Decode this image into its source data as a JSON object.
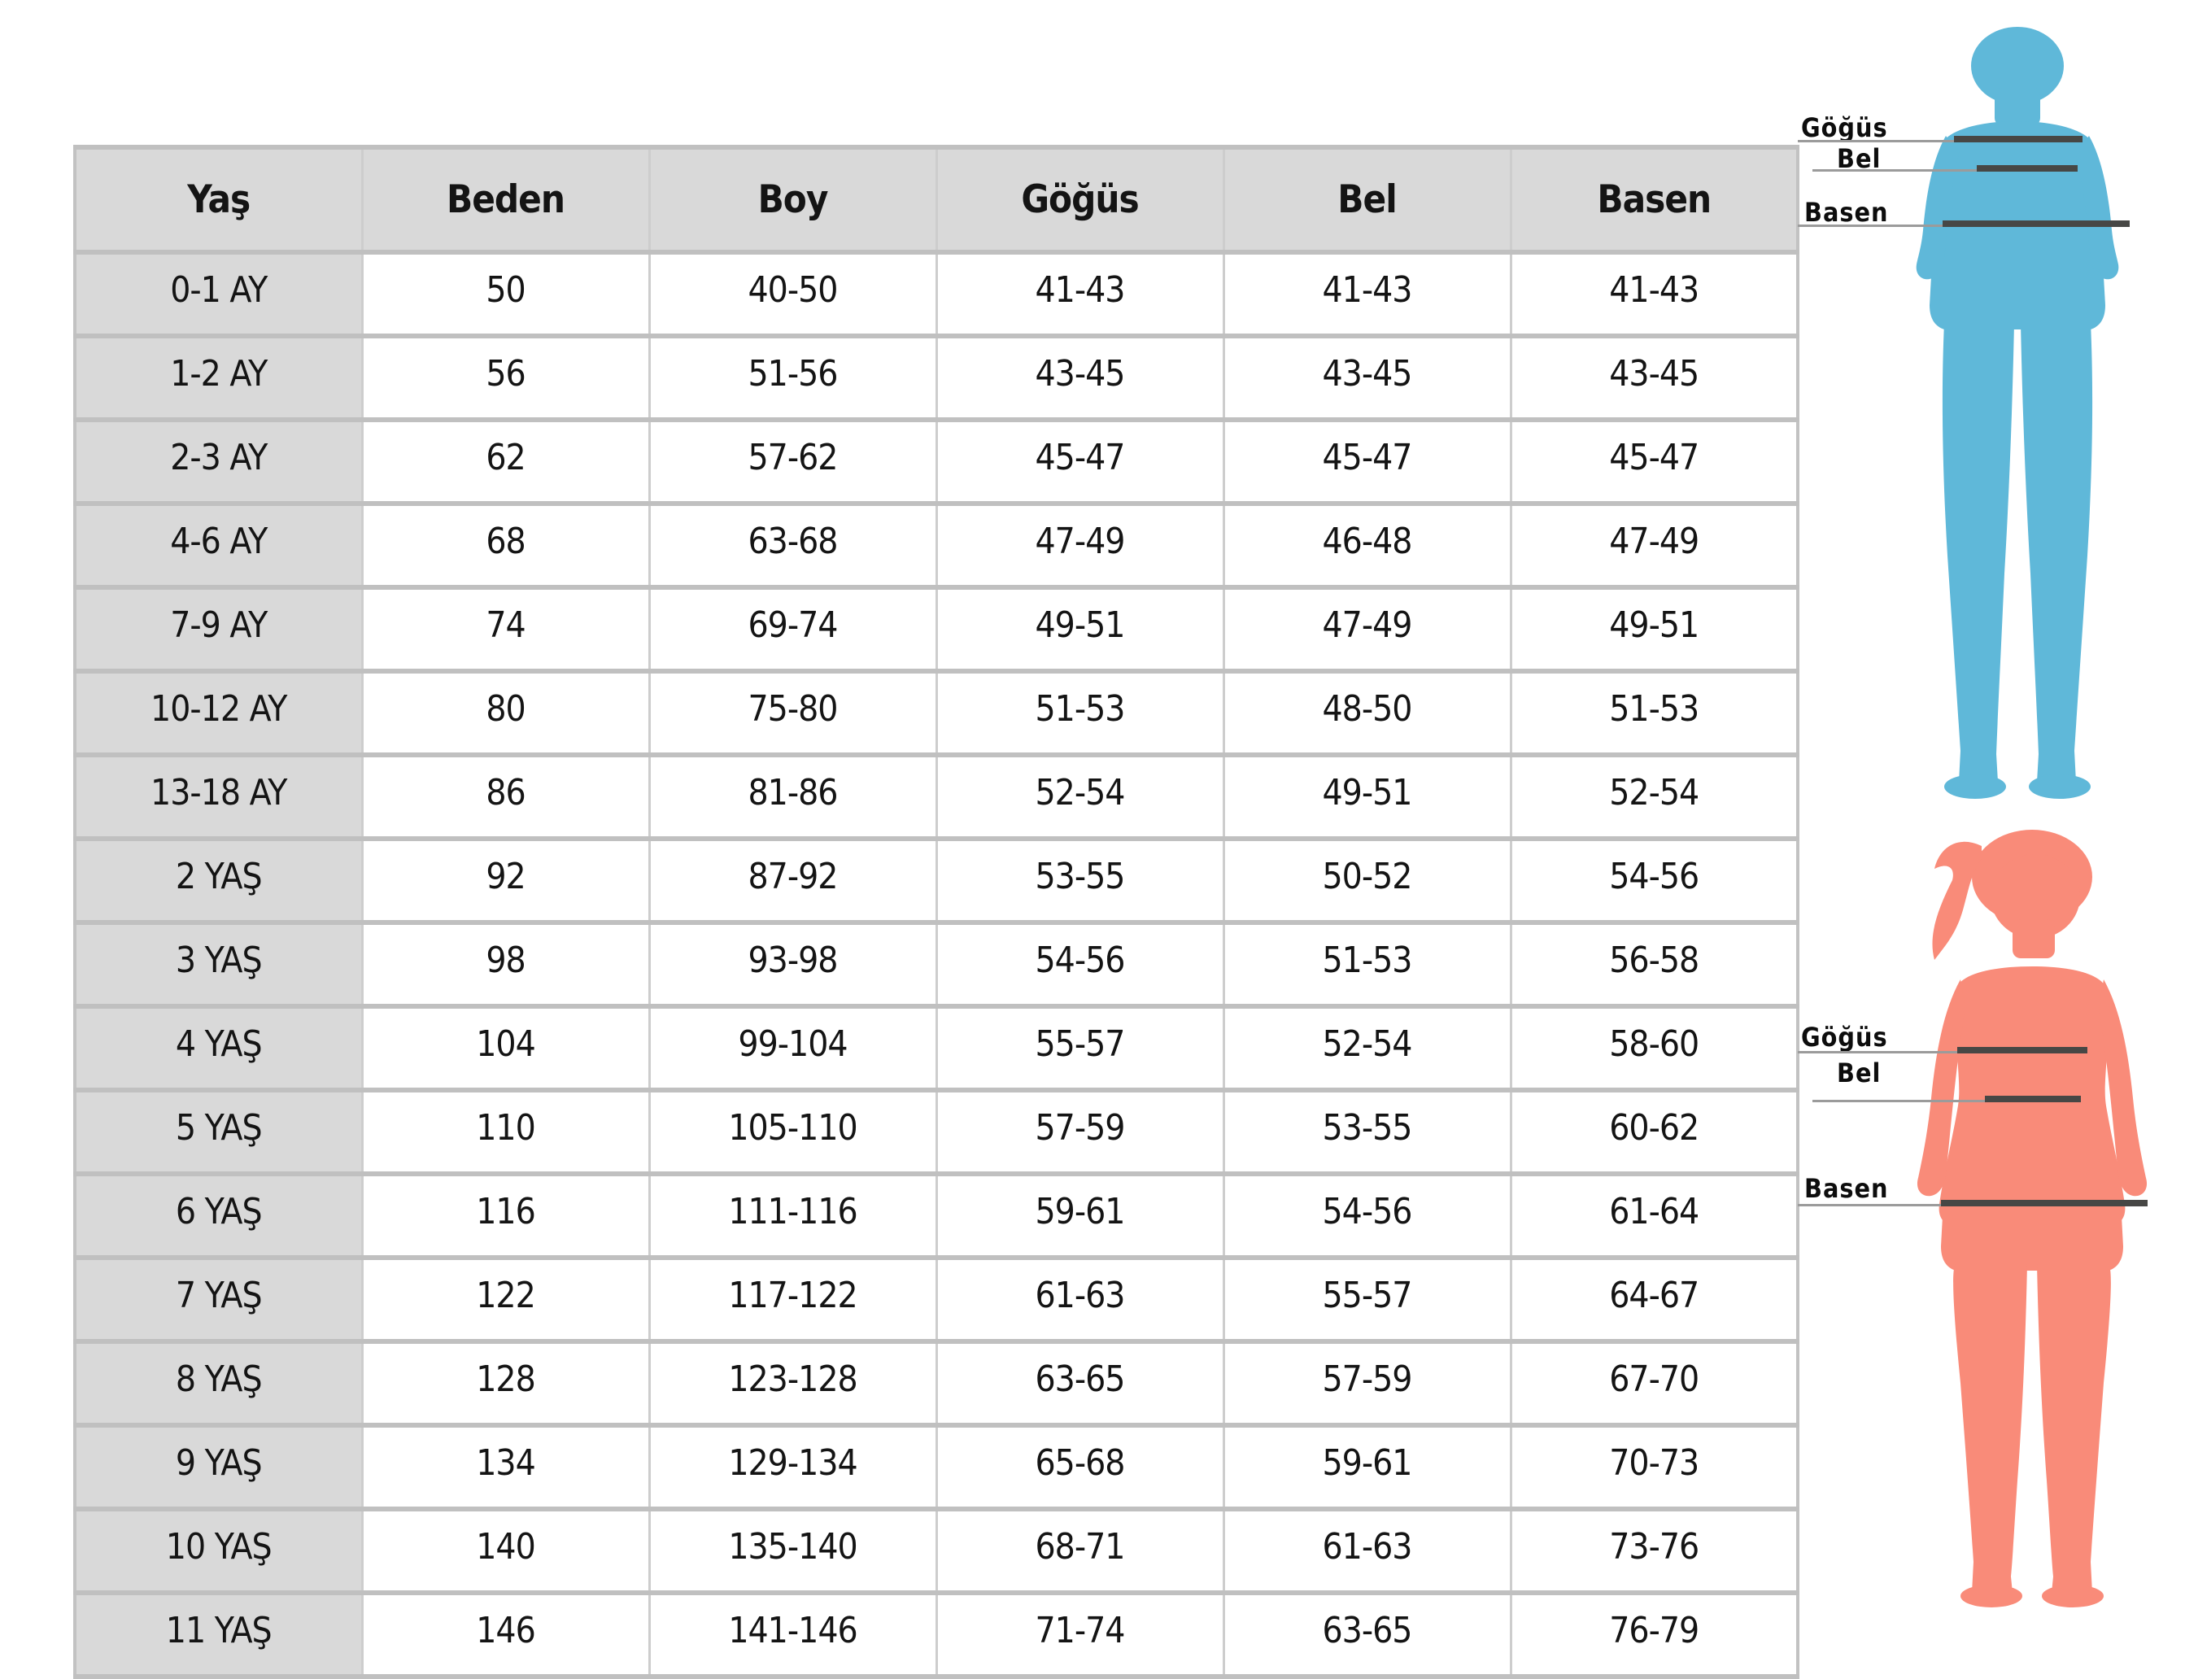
{
  "chart_data": {
    "type": "table",
    "columns": [
      "Yaş",
      "Beden",
      "Boy",
      "Göğüs",
      "Bel",
      "Basen"
    ],
    "rows": [
      [
        "0-1 AY",
        "50",
        "40-50",
        "41-43",
        "41-43",
        "41-43"
      ],
      [
        "1-2 AY",
        "56",
        "51-56",
        "43-45",
        "43-45",
        "43-45"
      ],
      [
        "2-3 AY",
        "62",
        "57-62",
        "45-47",
        "45-47",
        "45-47"
      ],
      [
        "4-6 AY",
        "68",
        "63-68",
        "47-49",
        "46-48",
        "47-49"
      ],
      [
        "7-9 AY",
        "74",
        "69-74",
        "49-51",
        "47-49",
        "49-51"
      ],
      [
        "10-12 AY",
        "80",
        "75-80",
        "51-53",
        "48-50",
        "51-53"
      ],
      [
        "13-18 AY",
        "86",
        "81-86",
        "52-54",
        "49-51",
        "52-54"
      ],
      [
        "2 YAŞ",
        "92",
        "87-92",
        "53-55",
        "50-52",
        "54-56"
      ],
      [
        "3 YAŞ",
        "98",
        "93-98",
        "54-56",
        "51-53",
        "56-58"
      ],
      [
        "4 YAŞ",
        "104",
        "99-104",
        "55-57",
        "52-54",
        "58-60"
      ],
      [
        "5 YAŞ",
        "110",
        "105-110",
        "57-59",
        "53-55",
        "60-62"
      ],
      [
        "6 YAŞ",
        "116",
        "111-116",
        "59-61",
        "54-56",
        "61-64"
      ],
      [
        "7 YAŞ",
        "122",
        "117-122",
        "61-63",
        "55-57",
        "64-67"
      ],
      [
        "8 YAŞ",
        "128",
        "123-128",
        "63-65",
        "57-59",
        "67-70"
      ],
      [
        "9 YAŞ",
        "134",
        "129-134",
        "65-68",
        "59-61",
        "70-73"
      ],
      [
        "10 YAŞ",
        "140",
        "135-140",
        "68-71",
        "61-63",
        "73-76"
      ],
      [
        "11 YAŞ",
        "146",
        "141-146",
        "71-74",
        "63-65",
        "76-79"
      ]
    ]
  },
  "figures": {
    "boy": {
      "color": "#5FB8D9",
      "chest_label": "Göğüs",
      "waist_label": "Bel",
      "hip_label": "Basen"
    },
    "girl": {
      "color": "#F98B79",
      "chest_label": "Göğüs",
      "waist_label": "Bel",
      "hip_label": "Basen"
    }
  },
  "colors": {
    "header_bg": "#d9d9d9",
    "age_column_bg": "#d9d9d9",
    "grid": "#c0c0c0",
    "measure_line_thick": "#474745",
    "measure_line_thin": "#9b9b9b",
    "boy_silhouette": "#5FB8D9",
    "girl_silhouette": "#F98B79"
  }
}
